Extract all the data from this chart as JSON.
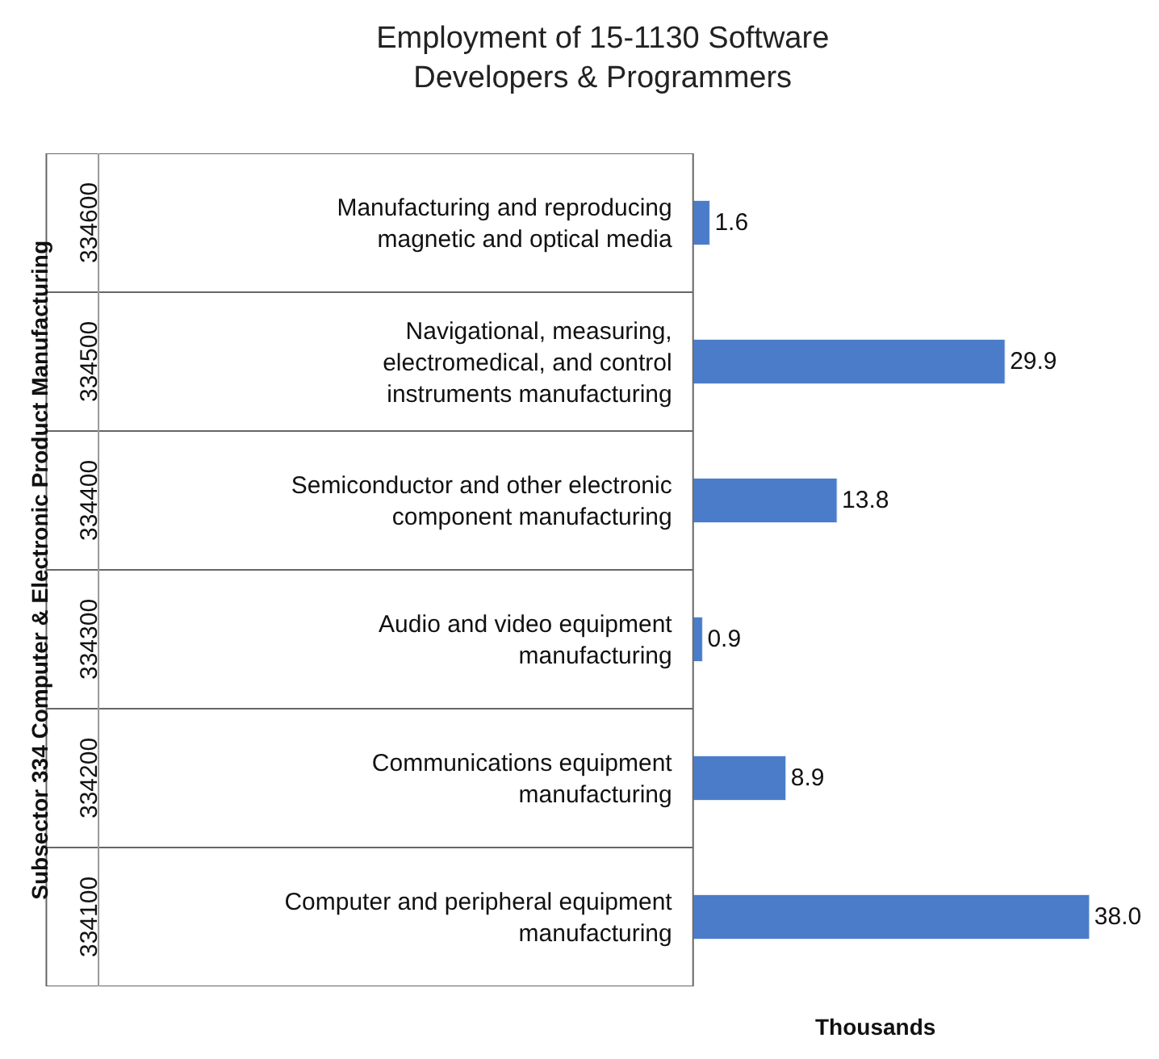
{
  "chart_data": {
    "type": "bar",
    "orientation": "horizontal",
    "title": "Employment of 15-1130 Software\nDevelopers & Programmers",
    "xlabel": "Thousands",
    "categories": [
      "Manufacturing and reproducing\nmagnetic and optical media",
      "Navigational, measuring,\nelectromedical, and control\ninstruments manufacturing",
      "Semiconductor and other electronic\ncomponent manufacturing",
      "Audio and video equipment\nmanufacturing",
      "Communications equipment\nmanufacturing",
      "Computer and peripheral equipment\nmanufacturing"
    ],
    "values": [
      1.6,
      29.9,
      13.8,
      0.9,
      8.9,
      38.0
    ],
    "value_labels": [
      "1.6",
      "29.9",
      "13.8",
      "0.9",
      "8.9",
      "38.0"
    ],
    "color": "#4a7cc9",
    "annotations": [
      "334600",
      "334500",
      "334400",
      "334300",
      "334200",
      "334100",
      "Subsector 334 Computer & Electronic Product Manufacturing"
    ]
  }
}
